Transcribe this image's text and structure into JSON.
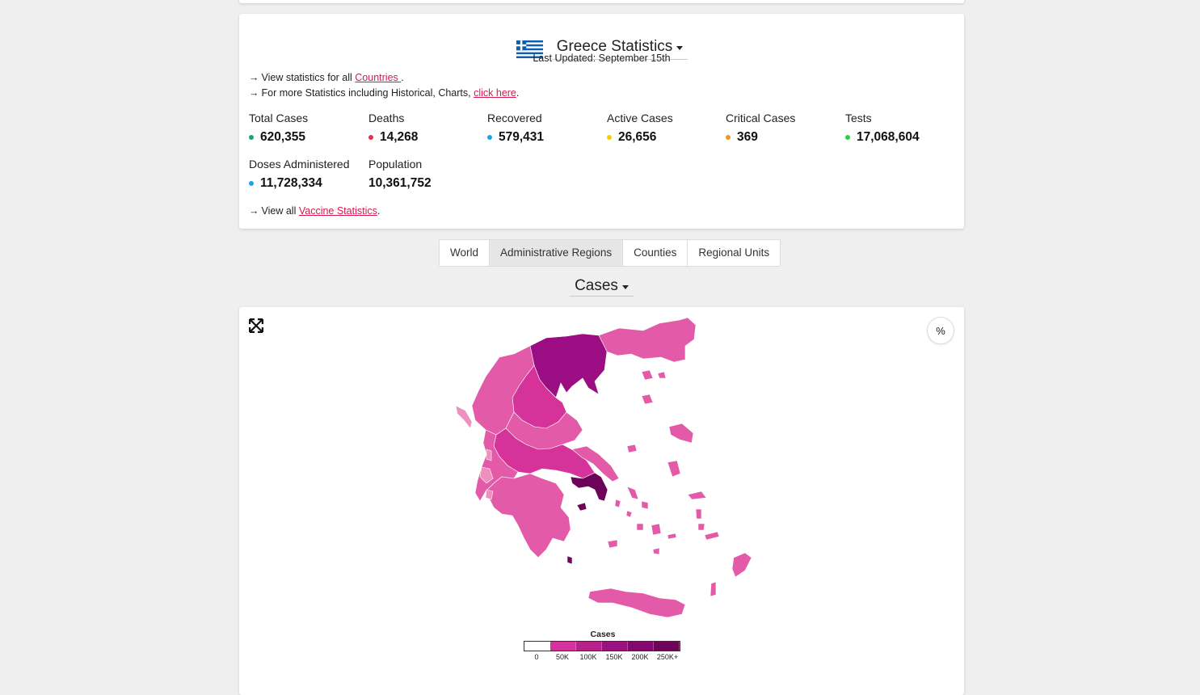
{
  "header": {
    "title": "Greece Statistics",
    "last_updated": "Last Updated: September 15th",
    "flag_icon": "greece-flag-icon"
  },
  "links": {
    "line1_prefix": "View statistics for all ",
    "line1_link": "Countries ",
    "line1_suffix": ".",
    "line2_prefix": "For more Statistics including Historical, Charts, ",
    "line2_link": "click here",
    "line2_suffix": ".",
    "line3_prefix": "View all ",
    "line3_link": "Vaccine Statistics",
    "line3_suffix": "."
  },
  "stats": [
    {
      "label": "Total Cases",
      "value": "620,355",
      "color": "#1aa56a"
    },
    {
      "label": "Deaths",
      "value": "14,268",
      "color": "#e0334c"
    },
    {
      "label": "Recovered",
      "value": "579,431",
      "color": "#1da1f2"
    },
    {
      "label": "Active Cases",
      "value": "26,656",
      "color": "#f5d000"
    },
    {
      "label": "Critical Cases",
      "value": "369",
      "color": "#f5931f"
    },
    {
      "label": "Tests",
      "value": "17,068,604",
      "color": "#2ecc40"
    },
    {
      "label": "Doses Administered",
      "value": "11,728,334",
      "color": "#1da1f2"
    },
    {
      "label": "Population",
      "value": "10,361,752",
      "color": null
    }
  ],
  "tabs": [
    {
      "label": "World",
      "active": false
    },
    {
      "label": "Administrative Regions",
      "active": true
    },
    {
      "label": "Counties",
      "active": false
    },
    {
      "label": "Regional Units",
      "active": false
    }
  ],
  "metric_select": "Cases",
  "map": {
    "percent_button": "%",
    "legend_title": "Cases",
    "legend_ticks": [
      "0",
      "50K",
      "100K",
      "150K",
      "200K",
      "250K+"
    ],
    "legend_colors": [
      "#ffffff",
      "#d6339a",
      "#b8208a",
      "#9c1182",
      "#84086f",
      "#6e0458"
    ],
    "colors": {
      "light": "#ee8fbe",
      "medium": "#e35aa8",
      "strong": "#d6339a",
      "dark": "#9b0d82",
      "darkest": "#6c0458"
    }
  }
}
